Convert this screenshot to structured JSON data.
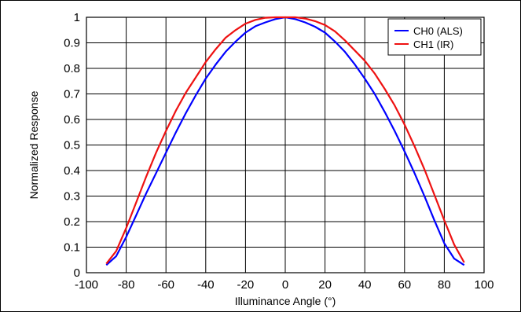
{
  "chart_data": {
    "type": "line",
    "title": "",
    "xlabel": "Illuminance Angle (°)",
    "ylabel": "Normalized Response",
    "xlim": [
      -100,
      100
    ],
    "ylim": [
      0,
      1
    ],
    "x_ticks": [
      "-100",
      "-80",
      "-60",
      "-40",
      "-20",
      "0",
      "20",
      "40",
      "60",
      "80",
      "100"
    ],
    "y_ticks": [
      "0",
      "0.1",
      "0.2",
      "0.3",
      "0.4",
      "0.5",
      "0.6",
      "0.7",
      "0.8",
      "0.9",
      "1"
    ],
    "grid": true,
    "legend_position": "top-right",
    "series": [
      {
        "name": "CH0 (ALS)",
        "color": "#0000ff",
        "x": [
          -90,
          -85,
          -80,
          -75,
          -70,
          -65,
          -60,
          -55,
          -50,
          -45,
          -40,
          -35,
          -30,
          -25,
          -20,
          -15,
          -10,
          -5,
          0,
          5,
          10,
          15,
          20,
          25,
          30,
          35,
          40,
          45,
          50,
          55,
          60,
          65,
          70,
          75,
          80,
          85,
          90
        ],
        "y": [
          0.03,
          0.065,
          0.14,
          0.225,
          0.31,
          0.39,
          0.47,
          0.55,
          0.625,
          0.695,
          0.76,
          0.815,
          0.865,
          0.905,
          0.94,
          0.965,
          0.98,
          0.993,
          1.0,
          0.993,
          0.98,
          0.963,
          0.94,
          0.905,
          0.865,
          0.815,
          0.76,
          0.7,
          0.63,
          0.555,
          0.475,
          0.39,
          0.3,
          0.205,
          0.115,
          0.055,
          0.03
        ]
      },
      {
        "name": "CH1 (IR)",
        "color": "#ee1111",
        "x": [
          -90,
          -85,
          -80,
          -75,
          -70,
          -65,
          -60,
          -55,
          -50,
          -45,
          -40,
          -35,
          -30,
          -25,
          -20,
          -15,
          -10,
          -5,
          0,
          5,
          10,
          15,
          20,
          25,
          30,
          35,
          40,
          45,
          50,
          55,
          60,
          65,
          70,
          75,
          80,
          85,
          90
        ],
        "y": [
          0.035,
          0.085,
          0.175,
          0.275,
          0.375,
          0.47,
          0.555,
          0.635,
          0.705,
          0.765,
          0.825,
          0.875,
          0.92,
          0.95,
          0.975,
          0.99,
          0.998,
          1.0,
          1.0,
          1.0,
          0.995,
          0.985,
          0.97,
          0.945,
          0.91,
          0.87,
          0.83,
          0.78,
          0.72,
          0.655,
          0.58,
          0.495,
          0.405,
          0.305,
          0.205,
          0.11,
          0.04
        ]
      }
    ]
  }
}
